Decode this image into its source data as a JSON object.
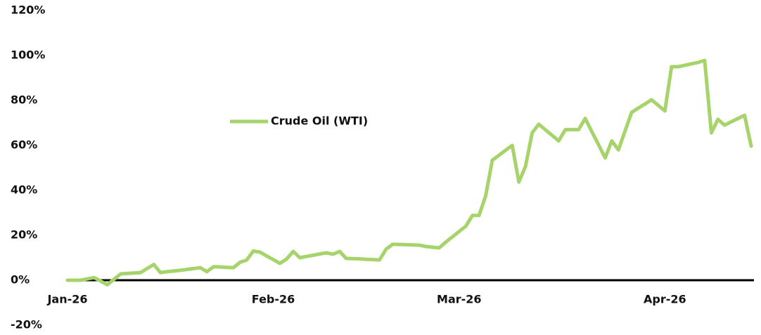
{
  "chart_data": {
    "type": "line",
    "categories": [
      "Jan-26",
      null,
      null,
      null,
      null,
      null,
      null,
      null,
      null,
      null,
      null,
      null,
      null,
      null,
      null,
      null,
      null,
      null,
      null,
      null,
      null,
      null,
      null,
      null,
      null,
      null,
      null,
      null,
      null,
      null,
      null,
      "Feb-26",
      null,
      null,
      null,
      null,
      null,
      null,
      null,
      null,
      null,
      null,
      null,
      null,
      null,
      null,
      null,
      null,
      null,
      null,
      null,
      null,
      null,
      null,
      null,
      null,
      null,
      null,
      null,
      "Mar-26",
      null,
      null,
      null,
      null,
      null,
      null,
      null,
      null,
      null,
      null,
      null,
      null,
      null,
      null,
      null,
      null,
      null,
      null,
      null,
      null,
      null,
      null,
      null,
      null,
      null,
      null,
      null,
      null,
      null,
      null,
      "Apr-26",
      null,
      null,
      null,
      null,
      null,
      null,
      null,
      null,
      null,
      null,
      null,
      null,
      null
    ],
    "series": [
      {
        "name": "Crude Oil (WTI)",
        "color": "#a6d46a",
        "values": [
          0,
          0,
          0,
          0.6,
          1.2,
          -0.4,
          -2,
          0.4,
          2.8,
          3,
          3.2,
          3.4,
          5.2,
          7,
          3.4,
          3.8,
          4.1,
          4.4,
          4.8,
          5.2,
          5.6,
          3.8,
          6,
          5.9,
          5.7,
          5.6,
          8,
          9,
          13,
          12.5,
          10.8,
          9.2,
          7.5,
          9.4,
          12.8,
          10,
          10.6,
          11.1,
          11.7,
          12.2,
          11.6,
          12.8,
          9.7,
          9.6,
          9.5,
          9.3,
          9.2,
          9,
          13.8,
          16,
          15.9,
          15.8,
          15.7,
          15.6,
          15,
          14.7,
          14.4,
          17,
          19.3,
          21.7,
          24,
          28.8,
          28.8,
          37.5,
          53.4,
          55.6,
          57.8,
          60,
          43.7,
          50.6,
          65.6,
          69.4,
          66.9,
          64.5,
          62,
          67,
          67,
          67,
          72,
          66.1,
          60.3,
          54.4,
          62,
          58,
          66.4,
          74.7,
          76.6,
          78.4,
          80.3,
          77.8,
          75.3,
          95,
          95,
          95.6,
          96.3,
          96.9,
          97.8,
          65.6,
          71.6,
          69,
          70.5,
          71.9,
          73.4,
          59.7
        ]
      }
    ],
    "ylim": [
      -20,
      120
    ],
    "yticks": [
      {
        "value": -20,
        "label": "-20%"
      },
      {
        "value": 0,
        "label": "0%"
      },
      {
        "value": 20,
        "label": "20%"
      },
      {
        "value": 40,
        "label": "40%"
      },
      {
        "value": 60,
        "label": "60%"
      },
      {
        "value": 80,
        "label": "80%"
      },
      {
        "value": 100,
        "label": "100%"
      },
      {
        "value": 120,
        "label": "120%"
      }
    ]
  }
}
